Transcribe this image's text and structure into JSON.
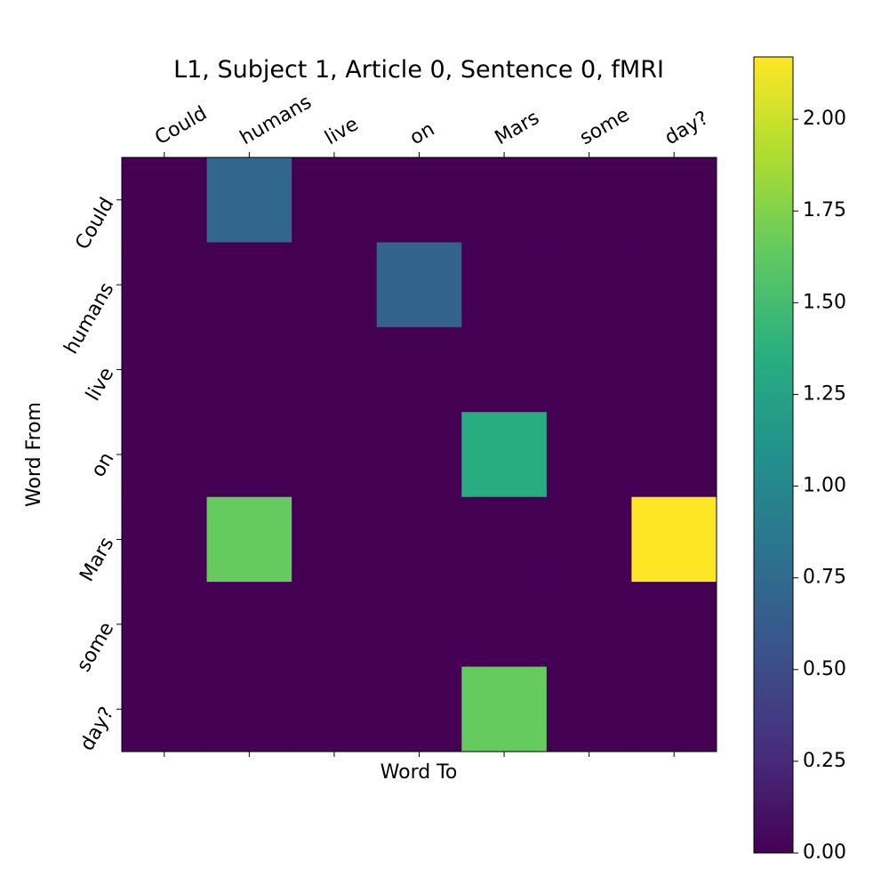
{
  "chart_data": {
    "type": "heatmap",
    "title": "L1, Subject 1, Article 0, Sentence 0, fMRI",
    "xlabel": "Word To",
    "ylabel": "Word From",
    "x_categories": [
      "Could",
      "humans",
      "live",
      "on",
      "Mars",
      "some",
      "day?"
    ],
    "y_categories": [
      "Could",
      "humans",
      "live",
      "on",
      "Mars",
      "some",
      "day?"
    ],
    "values": [
      [
        0,
        0.72,
        0,
        0,
        0,
        0,
        0
      ],
      [
        0,
        0,
        0,
        0.68,
        0,
        0,
        0
      ],
      [
        0,
        0,
        0,
        0,
        0,
        0,
        0
      ],
      [
        0,
        0,
        0,
        0,
        1.35,
        0,
        0
      ],
      [
        0,
        1.65,
        0,
        0,
        0,
        0,
        2.17
      ],
      [
        0,
        0,
        0,
        0,
        0,
        0,
        0
      ],
      [
        0,
        0,
        0,
        0,
        1.65,
        0,
        0
      ]
    ],
    "colorscale": "viridis",
    "colorbar": {
      "vmin": 0,
      "vmax": 2.17,
      "ticks": [
        0.0,
        0.25,
        0.5,
        0.75,
        1.0,
        1.25,
        1.5,
        1.75,
        2.0
      ],
      "tick_labels": [
        "0.00",
        "0.25",
        "0.50",
        "0.75",
        "1.00",
        "1.25",
        "1.50",
        "1.75",
        "2.00"
      ]
    },
    "grid": false
  }
}
